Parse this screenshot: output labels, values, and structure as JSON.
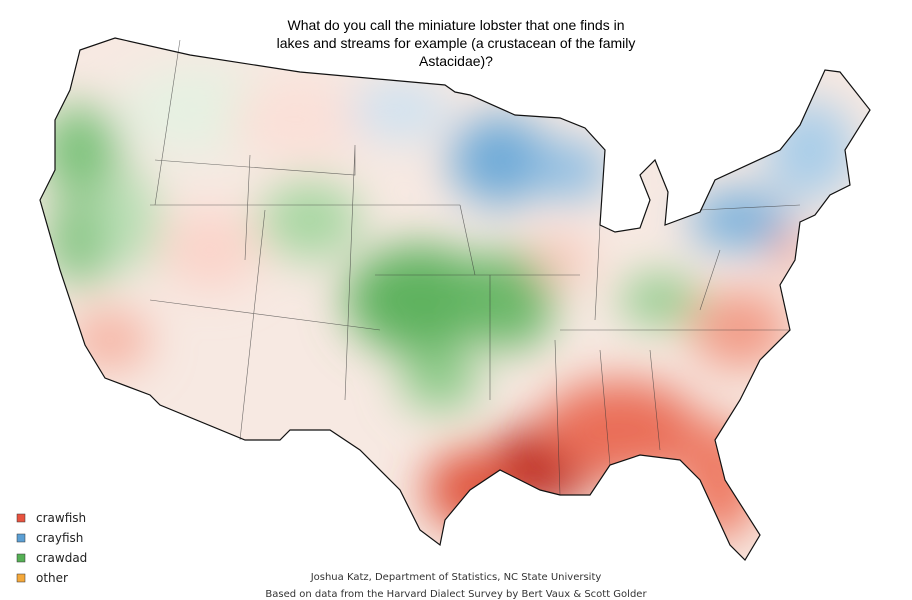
{
  "title": {
    "lines": [
      "What do you call the miniature lobster that one finds in",
      "lakes and streams for example (a crustacean of the family",
      "Astacidae)?"
    ]
  },
  "legend": [
    {
      "name": "crawfish",
      "color": "#e8533f"
    },
    {
      "name": "crayfish",
      "color": "#5b9fd4"
    },
    {
      "name": "crawdad",
      "color": "#55b055"
    },
    {
      "name": "other",
      "color": "#f4a83a"
    }
  ],
  "credits": [
    "Joshua Katz, Department of Statistics, NC State University",
    "Based on data from the Harvard Dialect Survey by Bert Vaux & Scott Golder"
  ]
}
